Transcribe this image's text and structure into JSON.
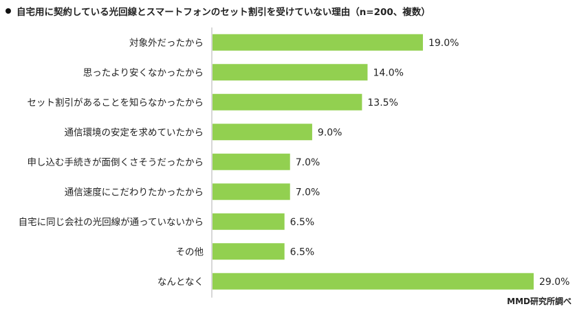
{
  "title": "自宅用に契約している光回線とスマートフォンのセット割引を受けていない理由（n=200、複数）",
  "source": "MMD研究所調べ",
  "colors": {
    "bar": "#92d050",
    "axis": "#b0b0b0",
    "text": "#222222"
  },
  "chart_data": {
    "type": "bar",
    "orientation": "horizontal",
    "title": "自宅用に契約している光回線とスマートフォンのセット割引を受けていない理由（n=200、複数）",
    "categories": [
      "対象外だったから",
      "思ったより安くなかったから",
      "セット割引があることを知らなかったから",
      "通信環境の安定を求めていたから",
      "申し込む手続きが面倒くさそうだったから",
      "通信速度にこだわりたかったから",
      "自宅に同じ会社の光回線が通っていないから",
      "その他",
      "なんとなく"
    ],
    "values": [
      19.0,
      14.0,
      13.5,
      9.0,
      7.0,
      7.0,
      6.5,
      6.5,
      29.0
    ],
    "value_labels": [
      "19.0%",
      "14.0%",
      "13.5%",
      "9.0%",
      "7.0%",
      "7.0%",
      "6.5%",
      "6.5%",
      "29.0%"
    ],
    "unit": "%",
    "xlim": [
      0,
      29
    ],
    "grid": false,
    "legend": "none"
  }
}
